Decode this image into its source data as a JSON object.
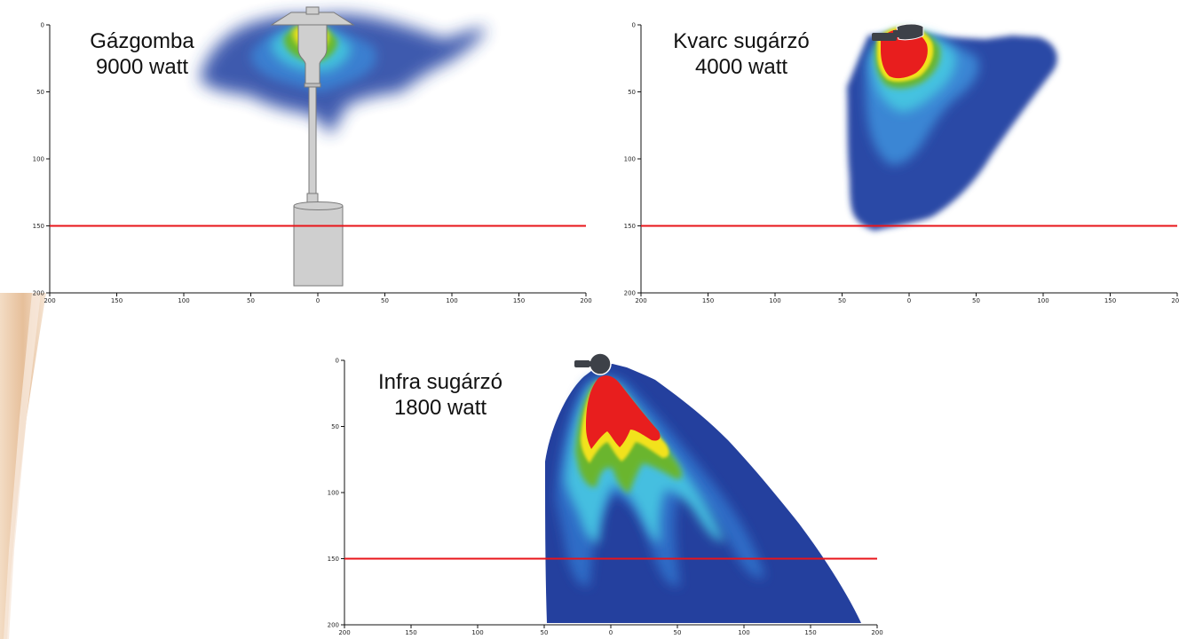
{
  "colors": {
    "background": "#ffffff",
    "reference_line": "#e8141a",
    "heat_red": "#e81e1e",
    "heat_yellow": "#f2e21a",
    "heat_green": "#6ab52e",
    "heat_cyan": "#3ab4e0",
    "heat_blue": "#2a4ea8",
    "heat_darkblue": "#1f2f86",
    "heater_body": "#cfcfcf",
    "heater_dark": "#3d4148",
    "decor_wood": "#e9c6a4"
  },
  "chart_data": [
    {
      "type": "heatmap",
      "title": [
        "Gázgomba",
        "9000 watt"
      ],
      "heater_icon": "gas-patio-heater-icon",
      "xlim": [
        -200,
        200
      ],
      "ylim": [
        0,
        200
      ],
      "y_inverted": true,
      "x_ticks": [
        200,
        150,
        100,
        50,
        0,
        50,
        100,
        150,
        200
      ],
      "y_ticks": [
        0,
        50,
        100,
        150,
        200
      ],
      "reference_line_y": 150
    },
    {
      "type": "heatmap",
      "title": [
        "Kvarc sugárzó",
        "4000 watt"
      ],
      "heater_icon": "wall-heater-icon",
      "xlim": [
        -200,
        200
      ],
      "ylim": [
        0,
        200
      ],
      "y_inverted": true,
      "x_ticks": [
        200,
        150,
        100,
        50,
        0,
        50,
        100,
        150,
        200
      ],
      "y_ticks": [
        0,
        50,
        100,
        150,
        200
      ],
      "reference_line_y": 150
    },
    {
      "type": "heatmap",
      "title": [
        "Infra sugárzó",
        "1800 watt"
      ],
      "heater_icon": "wall-heater-icon",
      "xlim": [
        -200,
        200
      ],
      "ylim": [
        0,
        200
      ],
      "y_inverted": true,
      "x_ticks": [
        200,
        150,
        100,
        50,
        0,
        50,
        100,
        150,
        200
      ],
      "y_ticks": [
        0,
        50,
        100,
        150,
        200
      ],
      "reference_line_y": 150
    }
  ]
}
